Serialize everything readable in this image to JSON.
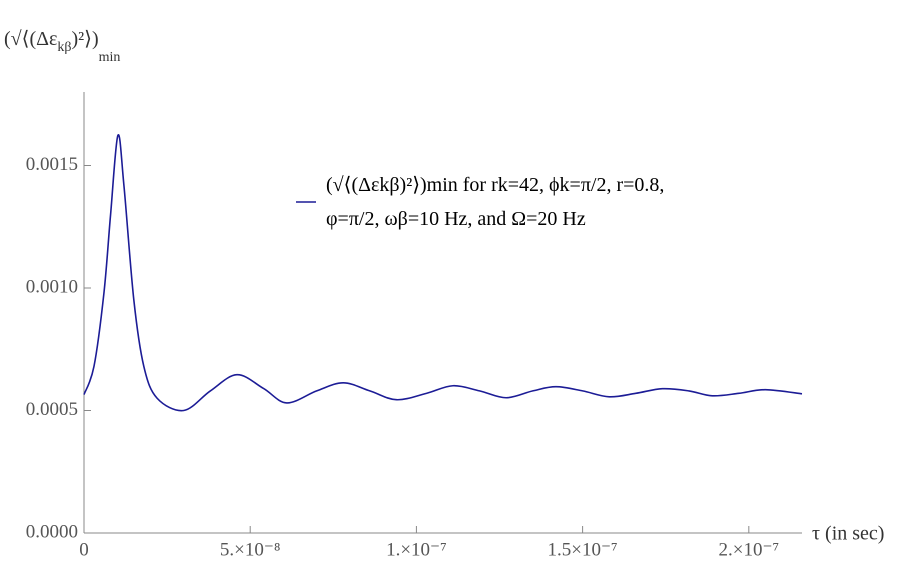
{
  "chart_data": {
    "type": "line",
    "y_label_parts": [
      "(√⟨(Δε",
      "kβ",
      ")²⟩)",
      "min"
    ],
    "x_label": "τ (in sec)",
    "x": [
      0,
      3e-09,
      6e-09,
      8e-09,
      1.02e-08,
      1.2e-08,
      1.5e-08,
      1.8e-08,
      2.2e-08,
      3e-08,
      3.8e-08,
      4.6e-08,
      5.4e-08,
      6.1e-08,
      7e-08,
      7.8e-08,
      8.6e-08,
      9.4e-08,
      1.03e-07,
      1.11e-07,
      1.19e-07,
      1.27e-07,
      1.35e-07,
      1.42e-07,
      1.5e-07,
      1.58e-07,
      1.66e-07,
      1.74e-07,
      1.82e-07,
      1.89e-07,
      1.97e-07,
      2.05e-07,
      2.16e-07
    ],
    "series": [
      {
        "name": "(√⟨(Δεkβ)²⟩)min  for rk=42, ϕk=π/2, r=0.8, φ=π/2, ωβ=10 Hz, and Ω=20 Hz",
        "color": "#1c1c96",
        "values": [
          0.000565,
          0.00068,
          0.00098,
          0.0013,
          0.001623,
          0.00142,
          0.00095,
          0.00068,
          0.00055,
          0.0005,
          0.00058,
          0.000646,
          0.00059,
          0.000531,
          0.00058,
          0.000613,
          0.00058,
          0.000544,
          0.00057,
          0.000601,
          0.00058,
          0.000552,
          0.00058,
          0.000597,
          0.00058,
          0.000556,
          0.00057,
          0.000589,
          0.00058,
          0.00056,
          0.00057,
          0.000585,
          0.000568
        ]
      }
    ],
    "xlim": [
      0,
      2.16e-07
    ],
    "ylim": [
      0,
      0.0018
    ],
    "xticks": [
      0,
      {
        "value": 5e-08,
        "label": "5.×10⁻⁸"
      },
      {
        "value": 1e-07,
        "label": "1.×10⁻⁷"
      },
      {
        "value": 1.5e-07,
        "label": "1.5×10⁻⁷"
      },
      {
        "value": 2e-07,
        "label": "2.×10⁻⁷"
      }
    ],
    "yticks": [
      {
        "value": 0,
        "label": "0.0000"
      },
      0.0005,
      {
        "value": 0.001,
        "label": "0.0010"
      },
      0.0015
    ]
  }
}
